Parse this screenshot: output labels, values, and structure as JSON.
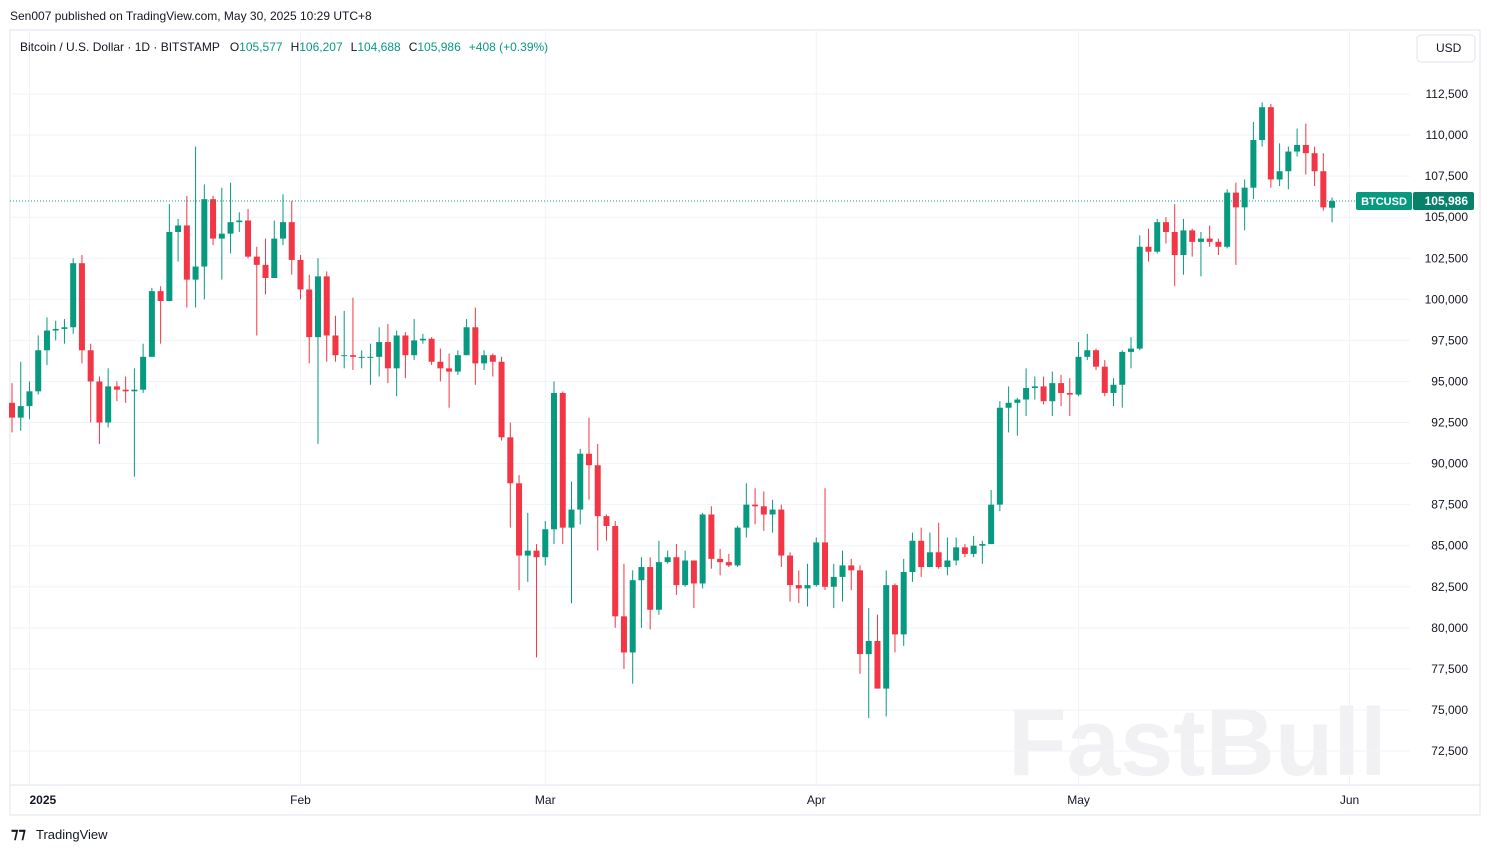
{
  "header": {
    "published": "Sen007 published on TradingView.com, May 30, 2025 10:29 UTC+8",
    "symbol": "Bitcoin / U.S. Dollar · 1D · BITSTAMP",
    "ohlc": [
      {
        "name": "O",
        "value": 105577,
        "label": "105,577"
      },
      {
        "name": "H",
        "value": 106207,
        "label": "106,207"
      },
      {
        "name": "L",
        "value": 104688,
        "label": "104,688"
      },
      {
        "name": "C",
        "value": 105986,
        "label": "105,986"
      }
    ],
    "change": "+408 (+0.39%)",
    "currency": "USD",
    "footer": "TradingView",
    "watermark": "FastBull"
  },
  "chart_data": {
    "type": "candlestick",
    "up_color": "#089981",
    "down_color": "#f23645",
    "grid": true,
    "xlim": [
      "2024-12-30",
      "2025-06-07"
    ],
    "ylim": [
      70430,
      116400
    ],
    "xticks": [
      {
        "value": "2025-01-01",
        "label": "2025"
      },
      {
        "value": "2025-02-01",
        "label": "Feb"
      },
      {
        "value": "2025-03-01",
        "label": "Mar"
      },
      {
        "value": "2025-04-01",
        "label": "Apr"
      },
      {
        "value": "2025-05-01",
        "label": "May"
      },
      {
        "value": "2025-06-01",
        "label": "Jun"
      }
    ],
    "yticks": [
      {
        "value": 72500,
        "label": "72,500"
      },
      {
        "value": 75000,
        "label": "75,000"
      },
      {
        "value": 77500,
        "label": "77,500"
      },
      {
        "value": 80000,
        "label": "80,000"
      },
      {
        "value": 82500,
        "label": "82,500"
      },
      {
        "value": 85000,
        "label": "85,000"
      },
      {
        "value": 87500,
        "label": "87,500"
      },
      {
        "value": 90000,
        "label": "90,000"
      },
      {
        "value": 92500,
        "label": "92,500"
      },
      {
        "value": 95000,
        "label": "95,000"
      },
      {
        "value": 97500,
        "label": "97,500"
      },
      {
        "value": 100000,
        "label": "100,000"
      },
      {
        "value": 102500,
        "label": "102,500"
      },
      {
        "value": 105000,
        "label": "105,000"
      },
      {
        "value": 107500,
        "label": "107,500"
      },
      {
        "value": 110000,
        "label": "110,000"
      },
      {
        "value": 112500,
        "label": "112,500"
      }
    ],
    "price_label": {
      "name": "BTCUSD",
      "value": 105986,
      "label": "105,986"
    },
    "x": [
      "2024-12-30",
      "2024-12-31",
      "2025-01-01",
      "2025-01-02",
      "2025-01-03",
      "2025-01-04",
      "2025-01-05",
      "2025-01-06",
      "2025-01-07",
      "2025-01-08",
      "2025-01-09",
      "2025-01-10",
      "2025-01-11",
      "2025-01-12",
      "2025-01-13",
      "2025-01-14",
      "2025-01-15",
      "2025-01-16",
      "2025-01-17",
      "2025-01-18",
      "2025-01-19",
      "2025-01-20",
      "2025-01-21",
      "2025-01-22",
      "2025-01-23",
      "2025-01-24",
      "2025-01-25",
      "2025-01-26",
      "2025-01-27",
      "2025-01-28",
      "2025-01-29",
      "2025-01-30",
      "2025-01-31",
      "2025-02-01",
      "2025-02-02",
      "2025-02-03",
      "2025-02-04",
      "2025-02-05",
      "2025-02-06",
      "2025-02-07",
      "2025-02-08",
      "2025-02-09",
      "2025-02-10",
      "2025-02-11",
      "2025-02-12",
      "2025-02-13",
      "2025-02-14",
      "2025-02-15",
      "2025-02-16",
      "2025-02-17",
      "2025-02-18",
      "2025-02-19",
      "2025-02-20",
      "2025-02-21",
      "2025-02-22",
      "2025-02-23",
      "2025-02-24",
      "2025-02-25",
      "2025-02-26",
      "2025-02-27",
      "2025-02-28",
      "2025-03-01",
      "2025-03-02",
      "2025-03-03",
      "2025-03-04",
      "2025-03-05",
      "2025-03-06",
      "2025-03-07",
      "2025-03-08",
      "2025-03-09",
      "2025-03-10",
      "2025-03-11",
      "2025-03-12",
      "2025-03-13",
      "2025-03-14",
      "2025-03-15",
      "2025-03-16",
      "2025-03-17",
      "2025-03-18",
      "2025-03-19",
      "2025-03-20",
      "2025-03-21",
      "2025-03-22",
      "2025-03-23",
      "2025-03-24",
      "2025-03-25",
      "2025-03-26",
      "2025-03-27",
      "2025-03-28",
      "2025-03-29",
      "2025-03-30",
      "2025-03-31",
      "2025-04-01",
      "2025-04-02",
      "2025-04-03",
      "2025-04-04",
      "2025-04-05",
      "2025-04-06",
      "2025-04-07",
      "2025-04-08",
      "2025-04-09",
      "2025-04-10",
      "2025-04-11",
      "2025-04-12",
      "2025-04-13",
      "2025-04-14",
      "2025-04-15",
      "2025-04-16",
      "2025-04-17",
      "2025-04-18",
      "2025-04-19",
      "2025-04-20",
      "2025-04-21",
      "2025-04-22",
      "2025-04-23",
      "2025-04-24",
      "2025-04-25",
      "2025-04-26",
      "2025-04-27",
      "2025-04-28",
      "2025-04-29",
      "2025-04-30",
      "2025-05-01",
      "2025-05-02",
      "2025-05-03",
      "2025-05-04",
      "2025-05-05",
      "2025-05-06",
      "2025-05-07",
      "2025-05-08",
      "2025-05-09",
      "2025-05-10",
      "2025-05-11",
      "2025-05-12",
      "2025-05-13",
      "2025-05-14",
      "2025-05-15",
      "2025-05-16",
      "2025-05-17",
      "2025-05-18",
      "2025-05-19",
      "2025-05-20",
      "2025-05-21",
      "2025-05-22",
      "2025-05-23",
      "2025-05-24",
      "2025-05-25",
      "2025-05-26",
      "2025-05-27",
      "2025-05-28",
      "2025-05-29",
      "2025-05-30"
    ],
    "open": [
      93700,
      92800,
      93500,
      94400,
      96900,
      98100,
      98200,
      98300,
      102200,
      96900,
      95000,
      92500,
      94700,
      94500,
      94400,
      94500,
      96500,
      100500,
      99900,
      104100,
      104500,
      101200,
      102000,
      106100,
      103700,
      104000,
      104700,
      104800,
      102600,
      102100,
      101300,
      103700,
      104700,
      102400,
      100600,
      97700,
      101400,
      97800,
      96600,
      96600,
      96500,
      96500,
      96500,
      97400,
      95800,
      97800,
      96600,
      97500,
      97600,
      96200,
      95800,
      95600,
      96600,
      98300,
      96100,
      96600,
      96200,
      91600,
      88800,
      84400,
      84700,
      84300,
      86000,
      94300,
      86100,
      87200,
      90600,
      89900,
      86800,
      86200,
      80700,
      78500,
      82900,
      83700,
      81100,
      84000,
      84300,
      82600,
      84100,
      82700,
      86900,
      84200,
      84000,
      83800,
      86100,
      87500,
      87400,
      86900,
      87200,
      84400,
      82600,
      82400,
      82600,
      85200,
      82500,
      83100,
      83800,
      83500,
      78400,
      79200,
      76300,
      82600,
      79600,
      83400,
      85300,
      83700,
      84600,
      83700,
      84100,
      84900,
      84500,
      85000,
      85100,
      87500,
      93400,
      93700,
      93900,
      94600,
      94700,
      93800,
      94900,
      94300,
      94200,
      96500,
      96900,
      95900,
      94300,
      94800,
      96800,
      97000,
      103200,
      102900,
      104700,
      104100,
      102700,
      104200,
      103500,
      103700,
      103500,
      103200,
      106500,
      105600,
      106800,
      109700,
      111700,
      107300,
      107800,
      109000,
      109400,
      108900,
      107800,
      105577
    ],
    "high": [
      94900,
      96200,
      95000,
      97800,
      98900,
      98700,
      98800,
      102500,
      102700,
      97300,
      95300,
      95800,
      95000,
      95300,
      95800,
      97300,
      100700,
      100800,
      105800,
      104900,
      106300,
      109300,
      107000,
      106300,
      106800,
      107100,
      105300,
      105500,
      103200,
      103700,
      104800,
      106400,
      106000,
      102700,
      101500,
      102500,
      101700,
      99000,
      99300,
      100100,
      96900,
      97300,
      98300,
      98500,
      98100,
      98000,
      98800,
      97900,
      97700,
      97000,
      96700,
      96900,
      98800,
      99500,
      96900,
      96700,
      96500,
      92500,
      89300,
      87000,
      85100,
      86500,
      95000,
      94400,
      88900,
      90900,
      92800,
      91200,
      86900,
      86500,
      83900,
      83500,
      84300,
      84300,
      85300,
      84700,
      85100,
      84700,
      84100,
      87000,
      87400,
      84800,
      84500,
      86200,
      88800,
      88500,
      88300,
      87800,
      87500,
      84600,
      83500,
      83900,
      85500,
      88500,
      83900,
      84700,
      84200,
      83800,
      81200,
      80800,
      83500,
      82700,
      84200,
      85800,
      86100,
      85800,
      86400,
      85500,
      85500,
      85100,
      85600,
      85300,
      88400,
      93800,
      94700,
      94000,
      95800,
      95300,
      95300,
      95600,
      95400,
      95200,
      97400,
      97900,
      97000,
      96300,
      95200,
      96900,
      97700,
      103900,
      104300,
      104900,
      105000,
      105800,
      104900,
      104300,
      104100,
      104500,
      103700,
      106700,
      107100,
      107300,
      110800,
      112000,
      111900,
      109500,
      109300,
      110400,
      110700,
      109300,
      108900,
      106207
    ],
    "low": [
      91900,
      92000,
      92700,
      94200,
      96000,
      97500,
      97300,
      97900,
      96100,
      92500,
      91200,
      92200,
      93800,
      93700,
      89200,
      94300,
      96500,
      97300,
      99900,
      102300,
      99500,
      99500,
      100000,
      103300,
      101200,
      102800,
      104100,
      102500,
      97800,
      100300,
      101300,
      103300,
      101500,
      100000,
      96100,
      91200,
      96200,
      96200,
      95800,
      95700,
      95800,
      94800,
      95300,
      94900,
      94100,
      95200,
      96300,
      97300,
      96000,
      95000,
      93400,
      95400,
      96600,
      94800,
      95700,
      95300,
      91400,
      86100,
      82300,
      82800,
      78200,
      83800,
      85100,
      85100,
      81500,
      86300,
      87800,
      84700,
      85300,
      80000,
      77500,
      76600,
      80000,
      79900,
      80800,
      83900,
      82000,
      82500,
      81200,
      82400,
      83600,
      83200,
      83700,
      83700,
      85500,
      86300,
      85900,
      85800,
      83700,
      81600,
      81500,
      81300,
      82500,
      82300,
      81200,
      81600,
      82300,
      77200,
      74500,
      76300,
      74600,
      78500,
      78900,
      82800,
      83100,
      83700,
      83600,
      83200,
      83800,
      84300,
      84300,
      83900,
      85100,
      87100,
      91900,
      91700,
      92900,
      93900,
      93600,
      92900,
      93500,
      92900,
      94100,
      96300,
      95700,
      94100,
      93500,
      93400,
      95800,
      96900,
      102300,
      102800,
      103400,
      100800,
      101500,
      102600,
      101400,
      103200,
      102700,
      103100,
      102100,
      104200,
      106100,
      109300,
      106800,
      106900,
      106700,
      108700,
      107600,
      106900,
      105400,
      104688
    ],
    "close": [
      92800,
      93500,
      94400,
      96900,
      98100,
      98200,
      98300,
      102200,
      96900,
      95000,
      92500,
      94700,
      94500,
      94400,
      94500,
      96500,
      100500,
      99900,
      104100,
      104500,
      101200,
      102000,
      106100,
      103700,
      104000,
      104700,
      104800,
      102600,
      102100,
      101300,
      103700,
      104700,
      102400,
      100600,
      97700,
      101400,
      97800,
      96600,
      96600,
      96500,
      96500,
      96500,
      97400,
      95800,
      97800,
      96600,
      97500,
      97600,
      96200,
      95800,
      95600,
      96600,
      98300,
      96100,
      96600,
      96200,
      91600,
      88800,
      84400,
      84700,
      84300,
      86000,
      94300,
      86100,
      87200,
      90600,
      89900,
      86800,
      86200,
      80700,
      78500,
      82900,
      83700,
      81100,
      84000,
      84300,
      82600,
      84100,
      82700,
      86900,
      84200,
      84000,
      83800,
      86100,
      87500,
      87400,
      86900,
      87200,
      84400,
      82600,
      82400,
      82600,
      85200,
      82500,
      83100,
      83800,
      83500,
      78400,
      79200,
      76300,
      82600,
      79600,
      83400,
      85300,
      83700,
      84600,
      83700,
      84100,
      84900,
      84500,
      85000,
      85100,
      87500,
      93400,
      93700,
      93900,
      94600,
      94700,
      93800,
      94900,
      94300,
      94200,
      96500,
      96900,
      95900,
      94300,
      94800,
      96800,
      97000,
      103200,
      102900,
      104700,
      104100,
      102700,
      104200,
      103500,
      103700,
      103500,
      103200,
      106500,
      105600,
      106800,
      109700,
      111700,
      107300,
      107800,
      109000,
      109400,
      108900,
      107800,
      105600,
      105986
    ]
  }
}
